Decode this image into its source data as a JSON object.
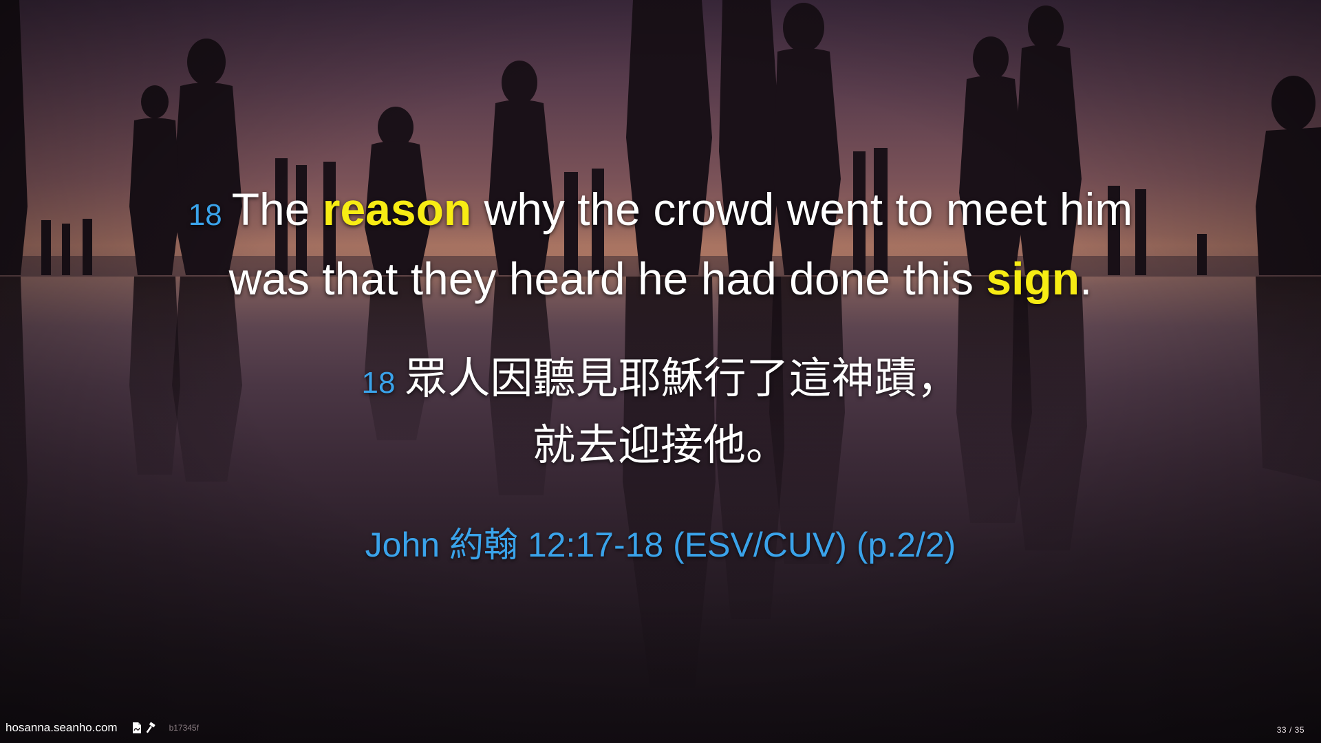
{
  "slide": {
    "verse_en": {
      "number": "18",
      "line1": {
        "part1": "The ",
        "highlight1": "reason",
        "part2": " why the crowd went to meet him"
      },
      "line2": {
        "part1": "was that they heard he had done this ",
        "highlight2": "sign",
        "part2": "."
      }
    },
    "verse_zh": {
      "number": "18",
      "line1": "眾人因聽見耶穌行了這神蹟，",
      "line2": "就去迎接他。"
    },
    "reference": "John 約翰 12:17-18 (ESV/CUV) (p.2/2)"
  },
  "footer": {
    "site": "hosanna.seanho.com",
    "icons": [
      "pdf-icon",
      "hammer-icon"
    ],
    "build": "b17345f",
    "page_current": "33",
    "page_separator": "/",
    "page_total": "35"
  },
  "colors": {
    "verse_number": "#3aa3ea",
    "highlight": "#f7ec14",
    "text": "#ffffff",
    "reference": "#3aa3ea"
  }
}
